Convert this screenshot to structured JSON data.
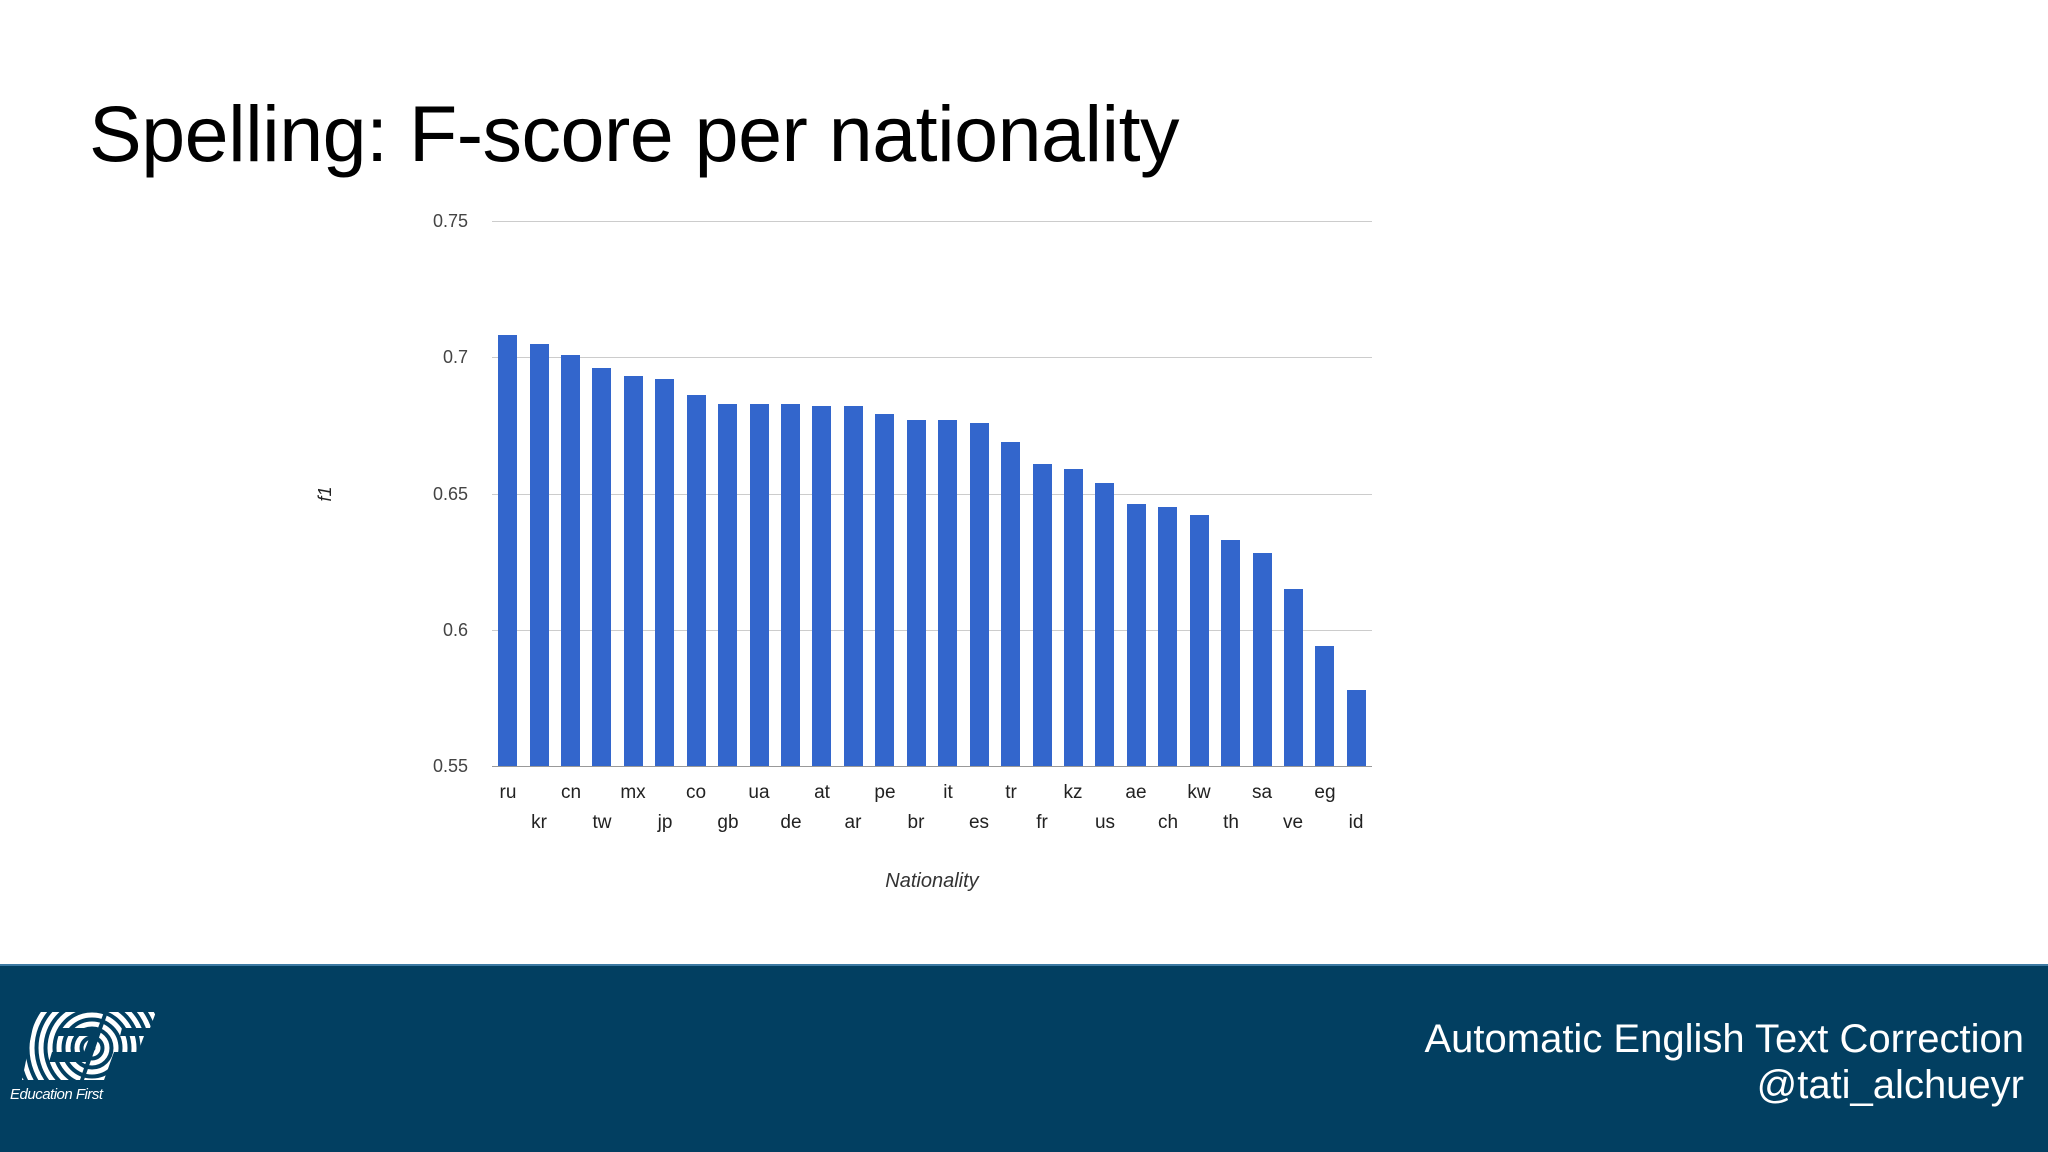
{
  "slide": {
    "title": "Spelling: F-score per nationality"
  },
  "footer": {
    "line1": "Automatic English Text Correction",
    "line2": "@tati_alchueyr",
    "logo_caption": "Education First",
    "logo_icon": "ef-logo-icon",
    "background_color": "#023f61"
  },
  "chart_data": {
    "type": "bar",
    "title": "Spelling: F-score per nationality",
    "xlabel": "Nationality",
    "ylabel": "f1",
    "ylim": [
      0.55,
      0.75
    ],
    "yticks": [
      "0.75",
      "0.7",
      "0.65",
      "0.6",
      "0.55"
    ],
    "grid": true,
    "legend": null,
    "bar_color": "#3366cc",
    "categories": [
      "ru",
      "kr",
      "cn",
      "tw",
      "mx",
      "jp",
      "co",
      "gb",
      "ua",
      "de",
      "at",
      "ar",
      "pe",
      "br",
      "it",
      "es",
      "tr",
      "fr",
      "kz",
      "us",
      "ae",
      "ch",
      "kw",
      "th",
      "sa",
      "ve",
      "eg",
      "id"
    ],
    "values": [
      0.708,
      0.705,
      0.701,
      0.696,
      0.693,
      0.692,
      0.686,
      0.683,
      0.683,
      0.683,
      0.682,
      0.682,
      0.679,
      0.677,
      0.677,
      0.676,
      0.669,
      0.661,
      0.659,
      0.654,
      0.646,
      0.645,
      0.642,
      0.633,
      0.628,
      0.615,
      0.594,
      0.578
    ]
  }
}
